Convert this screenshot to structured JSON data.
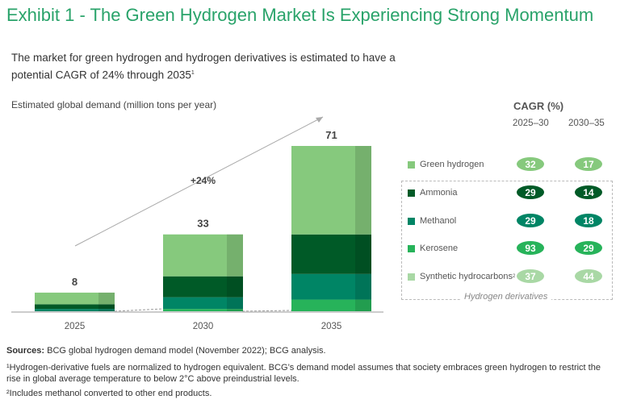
{
  "title": "Exhibit 1 - The Green Hydrogen Market Is Experiencing Strong Momentum",
  "subtitle": "The market for green hydrogen and hydrogen derivatives is estimated to have a potential CAGR of 24% through 2035",
  "subtitle_sup": "1",
  "chart_data": {
    "type": "bar",
    "stacked": true,
    "ylabel": "Estimated global demand (million tons per year)",
    "categories": [
      "2025",
      "2030",
      "2035"
    ],
    "totals": [
      8,
      33,
      71
    ],
    "series": [
      {
        "name": "Kerosene",
        "values": [
          0,
          1,
          5
        ],
        "color": "#27b35a"
      },
      {
        "name": "Methanol",
        "values": [
          1,
          5,
          11
        ],
        "color": "#008565"
      },
      {
        "name": "Ammonia",
        "values": [
          2,
          9,
          17
        ],
        "color": "#005a27"
      },
      {
        "name": "Green hydrogen",
        "values": [
          5,
          18,
          38
        ],
        "color": "#86c97d"
      }
    ],
    "ylim": [
      0,
      71
    ],
    "annotation": "+24%",
    "grid": false
  },
  "cagr": {
    "title": "CAGR (%)",
    "columns": [
      "2025–30",
      "2030–35"
    ],
    "rows": [
      {
        "label": "Green hydrogen",
        "sup": "",
        "color": "#86c97d",
        "values": [
          "32",
          "17"
        ]
      },
      {
        "label": "Ammonia",
        "sup": "",
        "color": "#005a27",
        "values": [
          "29",
          "14"
        ]
      },
      {
        "label": "Methanol",
        "sup": "",
        "color": "#008565",
        "values": [
          "29",
          "18"
        ]
      },
      {
        "label": "Kerosene",
        "sup": "",
        "color": "#27b35a",
        "values": [
          "93",
          "29"
        ]
      },
      {
        "label": "Synthetic hydrocarbons",
        "sup": "2",
        "color": "#a9d8a5",
        "values": [
          "37",
          "44"
        ]
      }
    ],
    "group_label": "Hydrogen derivatives"
  },
  "footnotes": {
    "sources_label": "Sources:",
    "sources": " BCG global hydrogen demand model (November 2022); BCG analysis.",
    "note1": "¹Hydrogen-derivative fuels are normalized to hydrogen equivalent. BCG’s demand model assumes that society embraces green hydrogen to restrict the rise in global average temperature to below 2°C above preindustrial levels.",
    "note2": "²Includes methanol converted to other end products."
  }
}
